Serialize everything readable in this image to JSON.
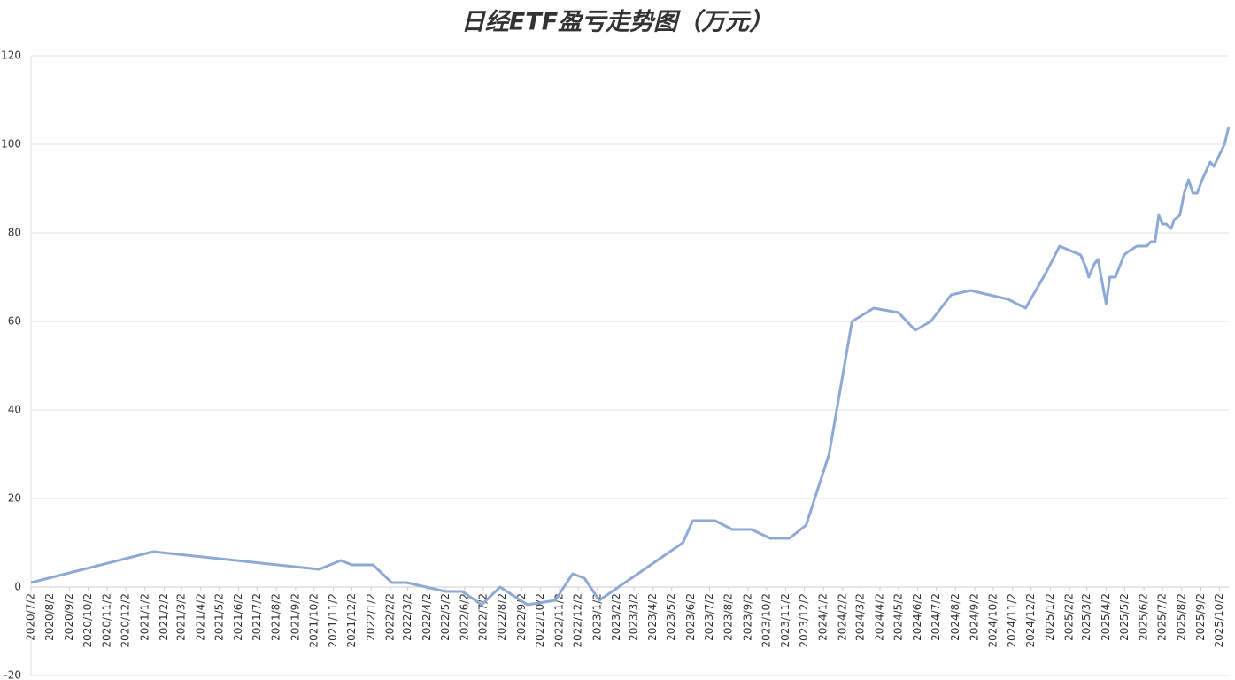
{
  "chart_data": {
    "type": "line",
    "title": "日经ETF盈亏走势图（万元）",
    "x": [
      "2020/7/2",
      "2021/1/15",
      "2021/10/10",
      "2021/11/14",
      "2021/12/2",
      "2022/1/5",
      "2022/2/4",
      "2022/2/28",
      "2022/5/2",
      "2022/5/29",
      "2022/6/29",
      "2022/7/29",
      "2022/9/11",
      "2022/10/26",
      "2022/11/23",
      "2022/12/12",
      "2023/1/5",
      "2023/5/20",
      "2023/6/5",
      "2023/7/11",
      "2023/8/8",
      "2023/9/8",
      "2023/10/8",
      "2023/11/8",
      "2023/12/5",
      "2024/1/11",
      "2024/2/17",
      "2024/3/23",
      "2024/5/2",
      "2024/5/29",
      "2024/6/23",
      "2024/7/26",
      "2024/8/26",
      "2024/10/26",
      "2024/11/23",
      "2024/12/26",
      "2025/1/17",
      "2025/2/20",
      "2025/3/1",
      "2025/3/5",
      "2025/3/14",
      "2025/3/20",
      "2025/4/2",
      "2025/4/8",
      "2025/4/17",
      "2025/5/1",
      "2025/5/10",
      "2025/5/22",
      "2025/6/7",
      "2025/6/13",
      "2025/6/20",
      "2025/6/26",
      "2025/7/2",
      "2025/7/8",
      "2025/7/16",
      "2025/7/21",
      "2025/7/30",
      "2025/8/6",
      "2025/8/13",
      "2025/8/20",
      "2025/8/27",
      "2025/9/4",
      "2025/9/17",
      "2025/9/23",
      "2025/10/10",
      "2025/10/17"
    ],
    "series": [
      {
        "color": "#8eaad4",
        "values": [
          1,
          8,
          4,
          6,
          5,
          5,
          1,
          1,
          -1,
          -1,
          -4,
          0,
          -4,
          -3,
          3,
          2,
          -3,
          10,
          15,
          15,
          13,
          13,
          11,
          11,
          14,
          30,
          60,
          63,
          62,
          58,
          60,
          66,
          67,
          65,
          63,
          71,
          77,
          75,
          72,
          70,
          73,
          74,
          64,
          70,
          70,
          75,
          76,
          77,
          77,
          78,
          78,
          84,
          82,
          82,
          81,
          83,
          84,
          89,
          92,
          89,
          89,
          92,
          96,
          95,
          100,
          104
        ]
      }
    ],
    "xlim": [
      "2020/7/2",
      "2025/10/17"
    ],
    "xticks": [
      "2020/7/2",
      "2020/8/2",
      "2020/9/2",
      "2020/10/2",
      "2020/11/2",
      "2020/12/2",
      "2021/1/2",
      "2021/2/2",
      "2021/3/2",
      "2021/4/2",
      "2021/5/2",
      "2021/6/2",
      "2021/7/2",
      "2021/8/2",
      "2021/9/2",
      "2021/10/2",
      "2021/11/2",
      "2021/12/2",
      "2022/1/2",
      "2022/2/2",
      "2022/3/2",
      "2022/4/2",
      "2022/5/2",
      "2022/6/2",
      "2022/7/2",
      "2022/8/2",
      "2022/9/2",
      "2022/10/2",
      "2022/11/2",
      "2022/12/2",
      "2023/1/2",
      "2023/2/2",
      "2023/3/2",
      "2023/4/2",
      "2023/5/2",
      "2023/6/2",
      "2023/7/2",
      "2023/8/2",
      "2023/9/2",
      "2023/10/2",
      "2023/11/2",
      "2023/12/2",
      "2024/1/2",
      "2024/2/2",
      "2024/3/2",
      "2024/4/2",
      "2024/5/2",
      "2024/6/2",
      "2024/7/2",
      "2024/8/2",
      "2024/9/2",
      "2024/10/2",
      "2024/11/2",
      "2024/12/2",
      "2025/1/2",
      "2025/2/2",
      "2025/3/2",
      "2025/4/2",
      "2025/5/2",
      "2025/6/2",
      "2025/7/2",
      "2025/8/2",
      "2025/9/2",
      "2025/10/2"
    ],
    "ylim": [
      -20,
      120
    ],
    "yticks": [
      -20,
      0,
      20,
      40,
      60,
      80,
      100,
      120
    ],
    "grid": true
  }
}
